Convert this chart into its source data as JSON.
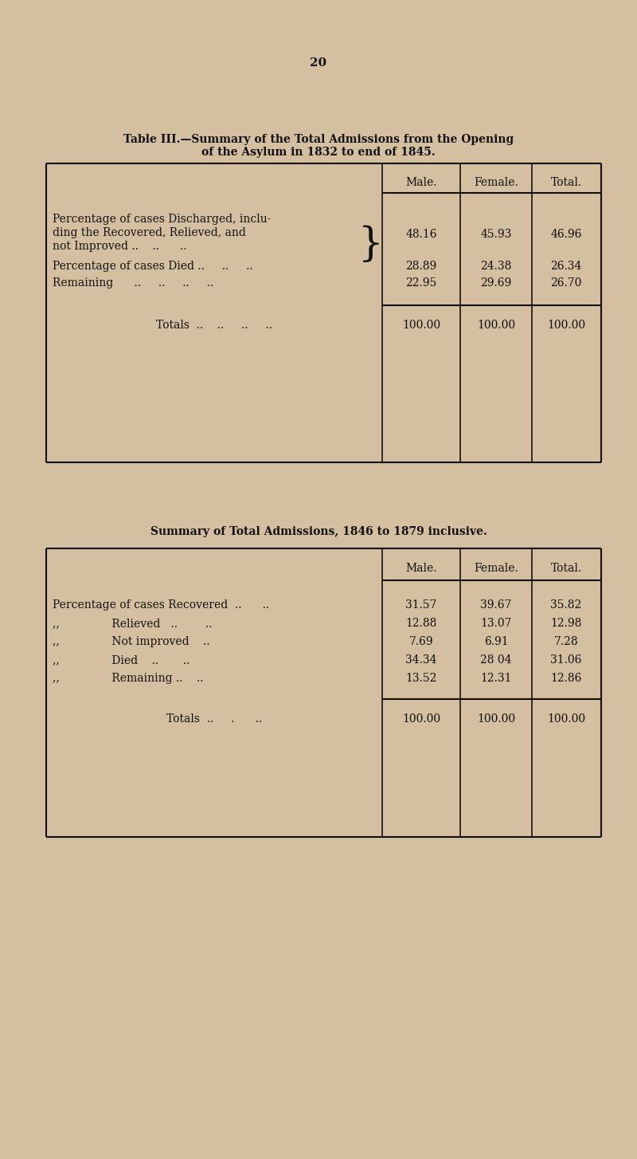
{
  "bg_color": "#d4bfa0",
  "page_number": "20",
  "table1_title_line1": "Table III.—Summary of the Total Admissions from the Opening",
  "table1_title_line2": "of the Asylum in 1832 to end of 1845.",
  "table1_col_headers": [
    "Male.",
    "Female.",
    "Total."
  ],
  "table1_row1_lines": [
    "Percentage of cases Discharged, inclu-",
    "ding the Recovered, Relieved, and",
    "not Improved ..    ..      .."
  ],
  "table1_row1_values": [
    "48.16",
    "45.93",
    "46.96"
  ],
  "table1_row2_label": "Percentage of cases Died ..     ..     ..",
  "table1_row2_values": [
    "28.89",
    "24.38",
    "26.34"
  ],
  "table1_row3_label": "Remaining      ..     ..     ..     ..",
  "table1_row3_values": [
    "22.95",
    "29.69",
    "26.70"
  ],
  "table1_totals_label": "Totals  ..    ..     ..     ..",
  "table1_totals_values": [
    "100.00",
    "100.00",
    "100.00"
  ],
  "table2_title": "Summary of Total Admissions, 1846 to 1879 inclusive.",
  "table2_col_headers": [
    "Male.",
    "Female.",
    "Total."
  ],
  "table2_labels": [
    "Percentage of cases Recovered  ..      ..",
    ",,                Relieved   ..        ..",
    ",,                Not improved    ..",
    ",,                Died    ..       ..",
    ",,                Remaining ..    .."
  ],
  "table2_values": [
    [
      "31.57",
      "39.67",
      "35.82"
    ],
    [
      "12.88",
      "13.07",
      "12.98"
    ],
    [
      "7.69",
      "6.91",
      "7.28"
    ],
    [
      "34.34",
      "28 04",
      "31.06"
    ],
    [
      "13.52",
      "12.31",
      "12.86"
    ]
  ],
  "table2_totals_label": "Totals  ..     .      ..",
  "table2_totals_values": [
    "100.00",
    "100.00",
    "100.00"
  ],
  "text_color": "#111111",
  "line_color": "#111111"
}
